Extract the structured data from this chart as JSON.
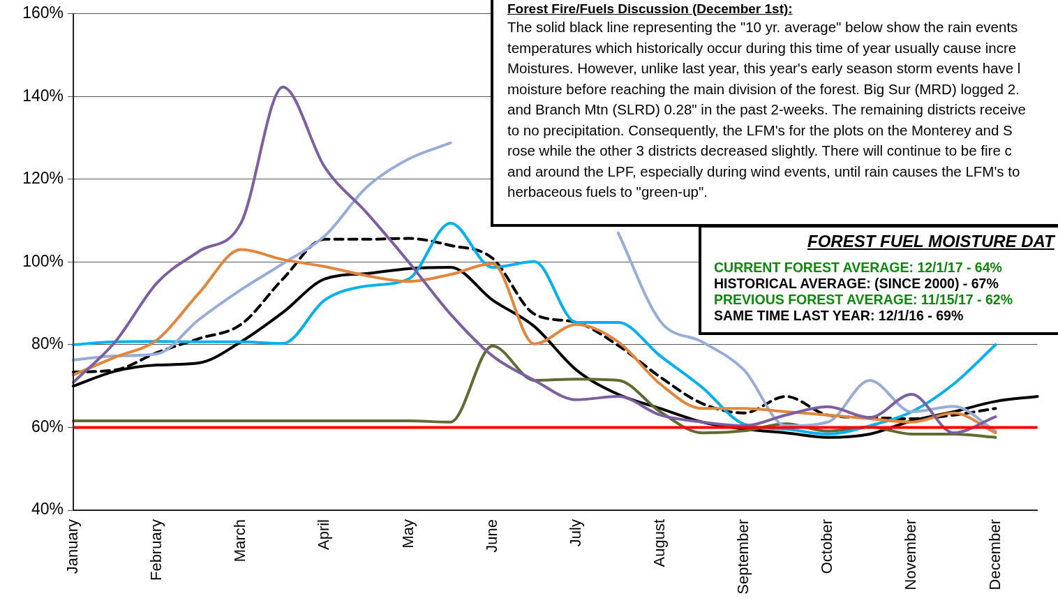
{
  "chart_data": {
    "type": "line",
    "categories": [
      "January",
      null,
      "February",
      null,
      "March",
      null,
      "April",
      null,
      "May",
      null,
      "June",
      null,
      "July",
      null,
      "August",
      null,
      "September",
      null,
      "October",
      null,
      "November",
      null,
      "December",
      null
    ],
    "ylim": [
      40,
      160
    ],
    "yticks": [
      {
        "value": 40,
        "label": "40%"
      },
      {
        "value": 60,
        "label": "60%"
      },
      {
        "value": 80,
        "label": "80%"
      },
      {
        "value": 100,
        "label": "100%"
      },
      {
        "value": 120,
        "label": "120%"
      },
      {
        "value": 140,
        "label": "140%"
      },
      {
        "value": 160,
        "label": "160%"
      }
    ],
    "grid": "y",
    "legend": false,
    "marker": "none",
    "series": [
      {
        "color": "#7b5fa3",
        "values": [
          70.9,
          80.7,
          95,
          102.6,
          109.4,
          142.3,
          122.9,
          111.9,
          100,
          87.4,
          77.3,
          71.4,
          66.7,
          67.5,
          63,
          61.3,
          60.4,
          63,
          65,
          62.4,
          68,
          58.7,
          62.6,
          null
        ]
      },
      {
        "color": "#e2863c",
        "values": [
          72.7,
          77,
          81.2,
          92.5,
          103,
          100.6,
          98.9,
          96.7,
          95.3,
          97,
          99.6,
          80.2,
          84.9,
          80.7,
          70.5,
          64.6,
          64.6,
          63.8,
          63,
          62.1,
          61.3,
          63.5,
          58.7,
          null
        ]
      },
      {
        "color": "#97acd6",
        "values": [
          76.3,
          77.3,
          77.8,
          86.1,
          93.3,
          99.6,
          106.3,
          118.1,
          124.9,
          128.8,
          null,
          null,
          null,
          107,
          85.7,
          80.7,
          73.9,
          60.4,
          61.3,
          71.4,
          63.8,
          65.1,
          59.1,
          null
        ]
      },
      {
        "color": "#00b0f0",
        "values": [
          80,
          80.7,
          80.8,
          80.7,
          80.7,
          80.3,
          90.8,
          94.2,
          95.9,
          109.4,
          98.7,
          100.1,
          85.4,
          85.4,
          77.3,
          69.7,
          60.8,
          59.6,
          58.4,
          60.4,
          63.8,
          70.5,
          80,
          null
        ]
      },
      {
        "color": "#5e6b33",
        "values": [
          61.6,
          61.6,
          61.6,
          61.6,
          61.6,
          61.6,
          61.6,
          61.6,
          61.6,
          61.3,
          79.7,
          71.4,
          71.7,
          71.4,
          63.8,
          58.7,
          59.2,
          60.9,
          59.1,
          60.1,
          58.4,
          58.4,
          57.6,
          null
        ]
      },
      {
        "color": "#000000",
        "values": [
          70,
          73.6,
          75.1,
          75.6,
          80.7,
          87.8,
          95.9,
          97.2,
          98.4,
          98.7,
          90.8,
          84.4,
          73.9,
          68,
          64.6,
          61.3,
          59.6,
          58.7,
          57.6,
          58.4,
          61.6,
          63.8,
          66.3,
          67.5
        ]
      },
      {
        "color": "#000000",
        "line_style": "dashed",
        "values": [
          73.4,
          73.9,
          78.1,
          81.5,
          84.9,
          95.9,
          105.5,
          105.5,
          105.7,
          104,
          100.9,
          87.4,
          85.4,
          79.8,
          72.2,
          65.8,
          63.5,
          67.5,
          63,
          62.4,
          62.1,
          63,
          64.6,
          null
        ]
      }
    ],
    "ref_lines": [
      {
        "axis": "y",
        "value": 60,
        "color": "#ff0000"
      }
    ],
    "annotations": [
      "Forest Fire/Fuels Discussion (December 1st):",
      "The solid black line representing the \"10 yr. average\" below show the rain events",
      "temperatures which historically occur during this time of year usually cause incre",
      "Moistures. However, unlike last year, this year's early season storm events have l",
      "moisture before reaching the main division of the forest. Big Sur (MRD) logged 2.",
      "and Branch Mtn (SLRD) 0.28\" in the past 2-weeks. The remaining districts receive",
      "to no precipitation. Consequently, the LFM's for the plots on the Monterey and S",
      "rose while the other 3 districts decreased slightly. There will continue to be fire c",
      "and around the LPF, especially during wind events, until rain causes the LFM's to",
      "herbaceous fuels to \"green-up\".",
      "FOREST FUEL MOISTURE DAT",
      "CURRENT FOREST AVERAGE: 12/1/17 - 64%",
      "HISTORICAL AVERAGE: (SINCE 2000) - 67%",
      "PREVIOUS FOREST AVERAGE: 11/15/17 - 62%",
      "SAME TIME LAST YEAR: 12/1/16 - 69%"
    ]
  }
}
